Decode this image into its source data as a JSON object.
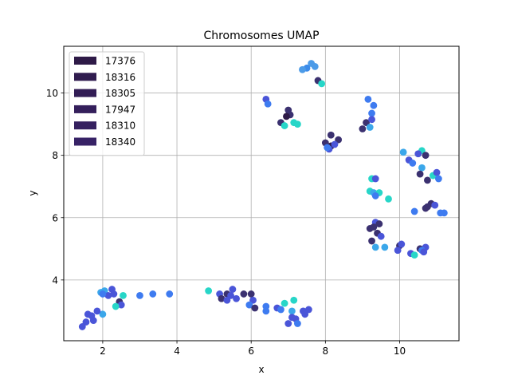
{
  "chart_data": {
    "type": "scatter",
    "title": "Chromosomes UMAP",
    "xlabel": "x",
    "ylabel": "y",
    "xlim": [
      0.95,
      11.6
    ],
    "ylim": [
      2.05,
      11.5
    ],
    "xticks": [
      2,
      4,
      6,
      8,
      10
    ],
    "yticks": [
      4,
      6,
      8,
      10
    ],
    "grid": true,
    "legend_position": "top-left",
    "legend": [
      {
        "name": "17376",
        "color": "#2e1a47"
      },
      {
        "name": "18316",
        "color": "#301c4f"
      },
      {
        "name": "18305",
        "color": "#321d55"
      },
      {
        "name": "17947",
        "color": "#341f5b"
      },
      {
        "name": "18310",
        "color": "#35205f"
      },
      {
        "name": "18340",
        "color": "#372266"
      }
    ],
    "points": [
      {
        "x": 7.62,
        "y": 10.95,
        "c": "#4c9be8"
      },
      {
        "x": 7.72,
        "y": 10.85,
        "c": "#4c9be8"
      },
      {
        "x": 7.5,
        "y": 10.8,
        "c": "#3b8bea"
      },
      {
        "x": 7.38,
        "y": 10.75,
        "c": "#4c9be8"
      },
      {
        "x": 7.8,
        "y": 10.4,
        "c": "#3b3170"
      },
      {
        "x": 7.9,
        "y": 10.3,
        "c": "#27d6c8"
      },
      {
        "x": 9.15,
        "y": 9.8,
        "c": "#3e7bf0"
      },
      {
        "x": 9.3,
        "y": 9.6,
        "c": "#3e7bf0"
      },
      {
        "x": 9.25,
        "y": 9.35,
        "c": "#3e7bf0"
      },
      {
        "x": 9.1,
        "y": 9.05,
        "c": "#3b3170"
      },
      {
        "x": 9.25,
        "y": 9.15,
        "c": "#4a55d8"
      },
      {
        "x": 9.0,
        "y": 8.85,
        "c": "#3b3170"
      },
      {
        "x": 9.2,
        "y": 8.9,
        "c": "#3ba7ea"
      },
      {
        "x": 6.4,
        "y": 9.8,
        "c": "#4a55d8"
      },
      {
        "x": 6.45,
        "y": 9.65,
        "c": "#3e7bf0"
      },
      {
        "x": 7.0,
        "y": 9.45,
        "c": "#3b3170"
      },
      {
        "x": 7.05,
        "y": 9.3,
        "c": "#3b3170"
      },
      {
        "x": 6.95,
        "y": 9.25,
        "c": "#2e1a47"
      },
      {
        "x": 6.8,
        "y": 9.05,
        "c": "#3b3170"
      },
      {
        "x": 6.9,
        "y": 8.95,
        "c": "#27d6c8"
      },
      {
        "x": 7.15,
        "y": 9.05,
        "c": "#27d6c8"
      },
      {
        "x": 7.25,
        "y": 9.0,
        "c": "#27d6c8"
      },
      {
        "x": 8.15,
        "y": 8.65,
        "c": "#3b3170"
      },
      {
        "x": 8.35,
        "y": 8.5,
        "c": "#3b3170"
      },
      {
        "x": 8.0,
        "y": 8.4,
        "c": "#3b3170"
      },
      {
        "x": 8.15,
        "y": 8.3,
        "c": "#2e1a47"
      },
      {
        "x": 8.25,
        "y": 8.35,
        "c": "#4a55d8"
      },
      {
        "x": 8.1,
        "y": 8.2,
        "c": "#4a55d8"
      },
      {
        "x": 8.05,
        "y": 8.25,
        "c": "#3e7bf0"
      },
      {
        "x": 10.1,
        "y": 8.1,
        "c": "#3ba7ea"
      },
      {
        "x": 10.6,
        "y": 8.15,
        "c": "#27d6c8"
      },
      {
        "x": 10.5,
        "y": 8.05,
        "c": "#4a55d8"
      },
      {
        "x": 10.7,
        "y": 8.0,
        "c": "#3b3170"
      },
      {
        "x": 10.25,
        "y": 7.85,
        "c": "#4a55d8"
      },
      {
        "x": 10.35,
        "y": 7.75,
        "c": "#3e7bf0"
      },
      {
        "x": 10.6,
        "y": 7.6,
        "c": "#3ba7ea"
      },
      {
        "x": 10.55,
        "y": 7.4,
        "c": "#3b3170"
      },
      {
        "x": 10.9,
        "y": 7.35,
        "c": "#27d6c8"
      },
      {
        "x": 11.0,
        "y": 7.45,
        "c": "#4a55d8"
      },
      {
        "x": 11.05,
        "y": 7.25,
        "c": "#3e7bf0"
      },
      {
        "x": 10.75,
        "y": 7.2,
        "c": "#3b3170"
      },
      {
        "x": 9.25,
        "y": 7.25,
        "c": "#27d6c8"
      },
      {
        "x": 9.35,
        "y": 7.25,
        "c": "#4a55d8"
      },
      {
        "x": 9.2,
        "y": 6.85,
        "c": "#27d6c8"
      },
      {
        "x": 9.3,
        "y": 6.8,
        "c": "#3ba7ea"
      },
      {
        "x": 9.45,
        "y": 6.8,
        "c": "#27d6c8"
      },
      {
        "x": 9.35,
        "y": 6.7,
        "c": "#3e7bf0"
      },
      {
        "x": 9.7,
        "y": 6.6,
        "c": "#27d6c8"
      },
      {
        "x": 10.85,
        "y": 6.45,
        "c": "#3b3170"
      },
      {
        "x": 10.95,
        "y": 6.4,
        "c": "#4a55d8"
      },
      {
        "x": 10.75,
        "y": 6.35,
        "c": "#3b3170"
      },
      {
        "x": 10.7,
        "y": 6.3,
        "c": "#3b3170"
      },
      {
        "x": 10.4,
        "y": 6.2,
        "c": "#3e7bf0"
      },
      {
        "x": 11.1,
        "y": 6.15,
        "c": "#3e7bf0"
      },
      {
        "x": 11.2,
        "y": 6.15,
        "c": "#3e7bf0"
      },
      {
        "x": 9.35,
        "y": 5.85,
        "c": "#4a55d8"
      },
      {
        "x": 9.45,
        "y": 5.8,
        "c": "#3b3170"
      },
      {
        "x": 9.2,
        "y": 5.65,
        "c": "#3b3170"
      },
      {
        "x": 9.3,
        "y": 5.7,
        "c": "#3b3170"
      },
      {
        "x": 9.4,
        "y": 5.5,
        "c": "#3b3170"
      },
      {
        "x": 9.5,
        "y": 5.4,
        "c": "#4a55d8"
      },
      {
        "x": 9.25,
        "y": 5.25,
        "c": "#3b3170"
      },
      {
        "x": 9.35,
        "y": 5.05,
        "c": "#3ba7ea"
      },
      {
        "x": 9.6,
        "y": 5.05,
        "c": "#3ba7ea"
      },
      {
        "x": 10.0,
        "y": 5.1,
        "c": "#3b3170"
      },
      {
        "x": 10.05,
        "y": 5.15,
        "c": "#4a55d8"
      },
      {
        "x": 9.95,
        "y": 4.95,
        "c": "#4a55d8"
      },
      {
        "x": 10.3,
        "y": 4.85,
        "c": "#4a55d8"
      },
      {
        "x": 10.4,
        "y": 4.8,
        "c": "#27d6c8"
      },
      {
        "x": 10.55,
        "y": 5.0,
        "c": "#3b3170"
      },
      {
        "x": 10.7,
        "y": 5.05,
        "c": "#4a55d8"
      },
      {
        "x": 10.6,
        "y": 4.95,
        "c": "#3e7bf0"
      },
      {
        "x": 10.65,
        "y": 4.9,
        "c": "#4a55d8"
      },
      {
        "x": 4.85,
        "y": 3.65,
        "c": "#27d6c8"
      },
      {
        "x": 5.15,
        "y": 3.55,
        "c": "#4a55d8"
      },
      {
        "x": 5.35,
        "y": 3.55,
        "c": "#3b3170"
      },
      {
        "x": 5.5,
        "y": 3.7,
        "c": "#4a55d8"
      },
      {
        "x": 5.45,
        "y": 3.5,
        "c": "#4a55d8"
      },
      {
        "x": 5.2,
        "y": 3.4,
        "c": "#3b3170"
      },
      {
        "x": 5.35,
        "y": 3.35,
        "c": "#4a55d8"
      },
      {
        "x": 5.6,
        "y": 3.4,
        "c": "#4a55d8"
      },
      {
        "x": 5.8,
        "y": 3.55,
        "c": "#3b3170"
      },
      {
        "x": 6.0,
        "y": 3.55,
        "c": "#3b3170"
      },
      {
        "x": 6.05,
        "y": 3.35,
        "c": "#4a55d8"
      },
      {
        "x": 5.95,
        "y": 3.2,
        "c": "#3e7bf0"
      },
      {
        "x": 6.1,
        "y": 3.1,
        "c": "#3b3170"
      },
      {
        "x": 6.4,
        "y": 3.15,
        "c": "#3e7bf0"
      },
      {
        "x": 6.4,
        "y": 3.0,
        "c": "#3e7bf0"
      },
      {
        "x": 6.7,
        "y": 3.1,
        "c": "#4a55d8"
      },
      {
        "x": 6.8,
        "y": 3.05,
        "c": "#3e7bf0"
      },
      {
        "x": 6.9,
        "y": 3.25,
        "c": "#27d6c8"
      },
      {
        "x": 7.15,
        "y": 3.35,
        "c": "#27d6c8"
      },
      {
        "x": 7.1,
        "y": 3.0,
        "c": "#3ba7ea"
      },
      {
        "x": 7.1,
        "y": 2.8,
        "c": "#4a55d8"
      },
      {
        "x": 7.2,
        "y": 2.75,
        "c": "#4a55d8"
      },
      {
        "x": 7.0,
        "y": 2.6,
        "c": "#4a55d8"
      },
      {
        "x": 7.25,
        "y": 2.6,
        "c": "#3e7bf0"
      },
      {
        "x": 7.4,
        "y": 3.0,
        "c": "#4a55d8"
      },
      {
        "x": 7.55,
        "y": 3.05,
        "c": "#4a55d8"
      },
      {
        "x": 7.45,
        "y": 2.9,
        "c": "#4a55d8"
      },
      {
        "x": 1.95,
        "y": 3.6,
        "c": "#3ba7ea"
      },
      {
        "x": 2.05,
        "y": 3.65,
        "c": "#3ba7ea"
      },
      {
        "x": 2.25,
        "y": 3.7,
        "c": "#4a55d8"
      },
      {
        "x": 2.15,
        "y": 3.5,
        "c": "#4a55d8"
      },
      {
        "x": 2.3,
        "y": 3.55,
        "c": "#4a55d8"
      },
      {
        "x": 2.55,
        "y": 3.5,
        "c": "#27d6c8"
      },
      {
        "x": 2.0,
        "y": 3.55,
        "c": "#3e7bf0"
      },
      {
        "x": 2.45,
        "y": 3.3,
        "c": "#3b3170"
      },
      {
        "x": 2.5,
        "y": 3.2,
        "c": "#4a55d8"
      },
      {
        "x": 2.35,
        "y": 3.15,
        "c": "#27d6c8"
      },
      {
        "x": 2.0,
        "y": 2.9,
        "c": "#3ba7ea"
      },
      {
        "x": 1.85,
        "y": 3.0,
        "c": "#4a55d8"
      },
      {
        "x": 1.6,
        "y": 2.9,
        "c": "#4a55d8"
      },
      {
        "x": 1.7,
        "y": 2.85,
        "c": "#4a55d8"
      },
      {
        "x": 1.75,
        "y": 2.7,
        "c": "#4a55d8"
      },
      {
        "x": 1.55,
        "y": 2.65,
        "c": "#4a55d8"
      },
      {
        "x": 1.45,
        "y": 2.5,
        "c": "#4a55d8"
      },
      {
        "x": 3.0,
        "y": 3.5,
        "c": "#3e7bf0"
      },
      {
        "x": 3.35,
        "y": 3.55,
        "c": "#3e7bf0"
      },
      {
        "x": 3.8,
        "y": 3.55,
        "c": "#3e7bf0"
      }
    ]
  }
}
